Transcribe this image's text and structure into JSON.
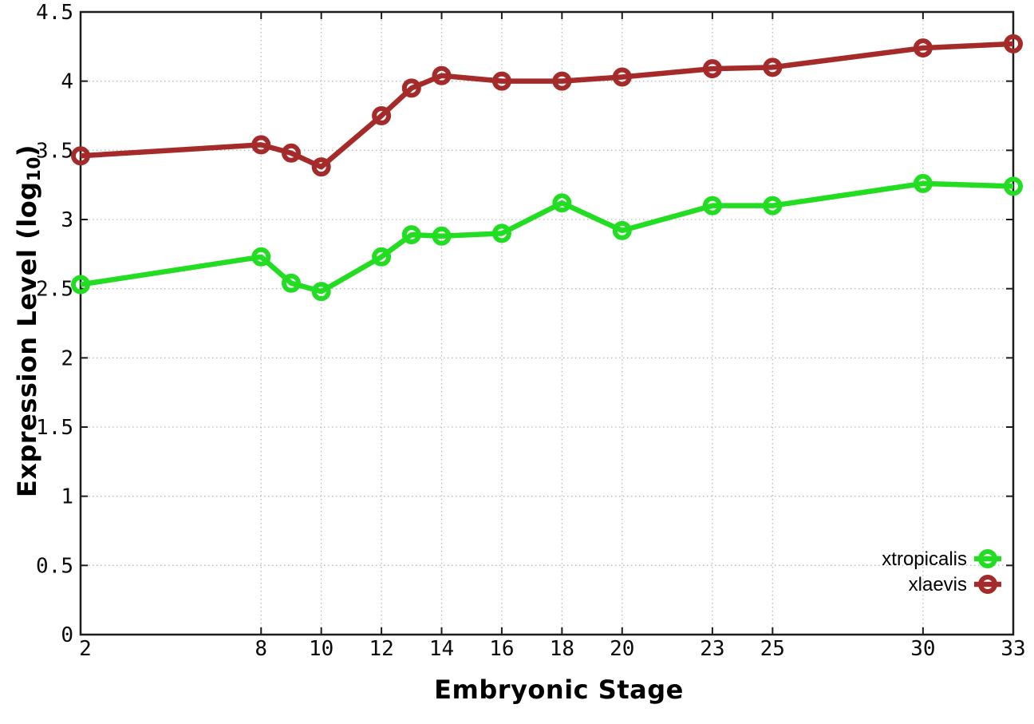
{
  "figure": {
    "background": "#ffffff",
    "border_color": "#1c1c1c",
    "grid_color": "#bbbbbb",
    "text_color": "#000000"
  },
  "chart_data": {
    "type": "line",
    "title": "",
    "xlabel": "Embryonic Stage",
    "ylabel_prefix": "Expression Level (log",
    "ylabel_sub": "10",
    "ylabel_suffix": ")",
    "xlim": [
      2,
      33
    ],
    "ylim": [
      0,
      4.5
    ],
    "x_ticks": [
      2,
      8,
      10,
      12,
      14,
      16,
      18,
      20,
      23,
      25,
      30,
      33
    ],
    "x_tick_labels": [
      "2",
      "8",
      "10",
      "12",
      "14",
      "16",
      "18",
      "20",
      "23",
      "25",
      "30",
      "33"
    ],
    "y_ticks": [
      0,
      0.5,
      1,
      1.5,
      2,
      2.5,
      3,
      3.5,
      4,
      4.5
    ],
    "y_tick_labels": [
      "0",
      "0.5",
      "1",
      "1.5",
      "2",
      "2.5",
      "3",
      "3.5",
      "4",
      "4.5"
    ],
    "grid": true,
    "legend_position": "inside-right-bottom",
    "x": [
      2,
      8,
      9,
      10,
      12,
      13,
      14,
      16,
      18,
      20,
      23,
      25,
      30,
      33
    ],
    "series": [
      {
        "name": "xtropicalis",
        "color": "#22dd22",
        "marker": "open-circle",
        "values": [
          2.53,
          2.73,
          2.54,
          2.48,
          2.73,
          2.89,
          2.88,
          2.9,
          3.12,
          2.92,
          3.1,
          3.1,
          3.26,
          3.24
        ]
      },
      {
        "name": "xlaevis",
        "color": "#a52a2a",
        "marker": "open-circle",
        "values": [
          3.46,
          3.54,
          3.48,
          3.38,
          3.75,
          3.95,
          4.04,
          4.0,
          4.0,
          4.03,
          4.09,
          4.1,
          4.24,
          4.27
        ]
      }
    ]
  }
}
